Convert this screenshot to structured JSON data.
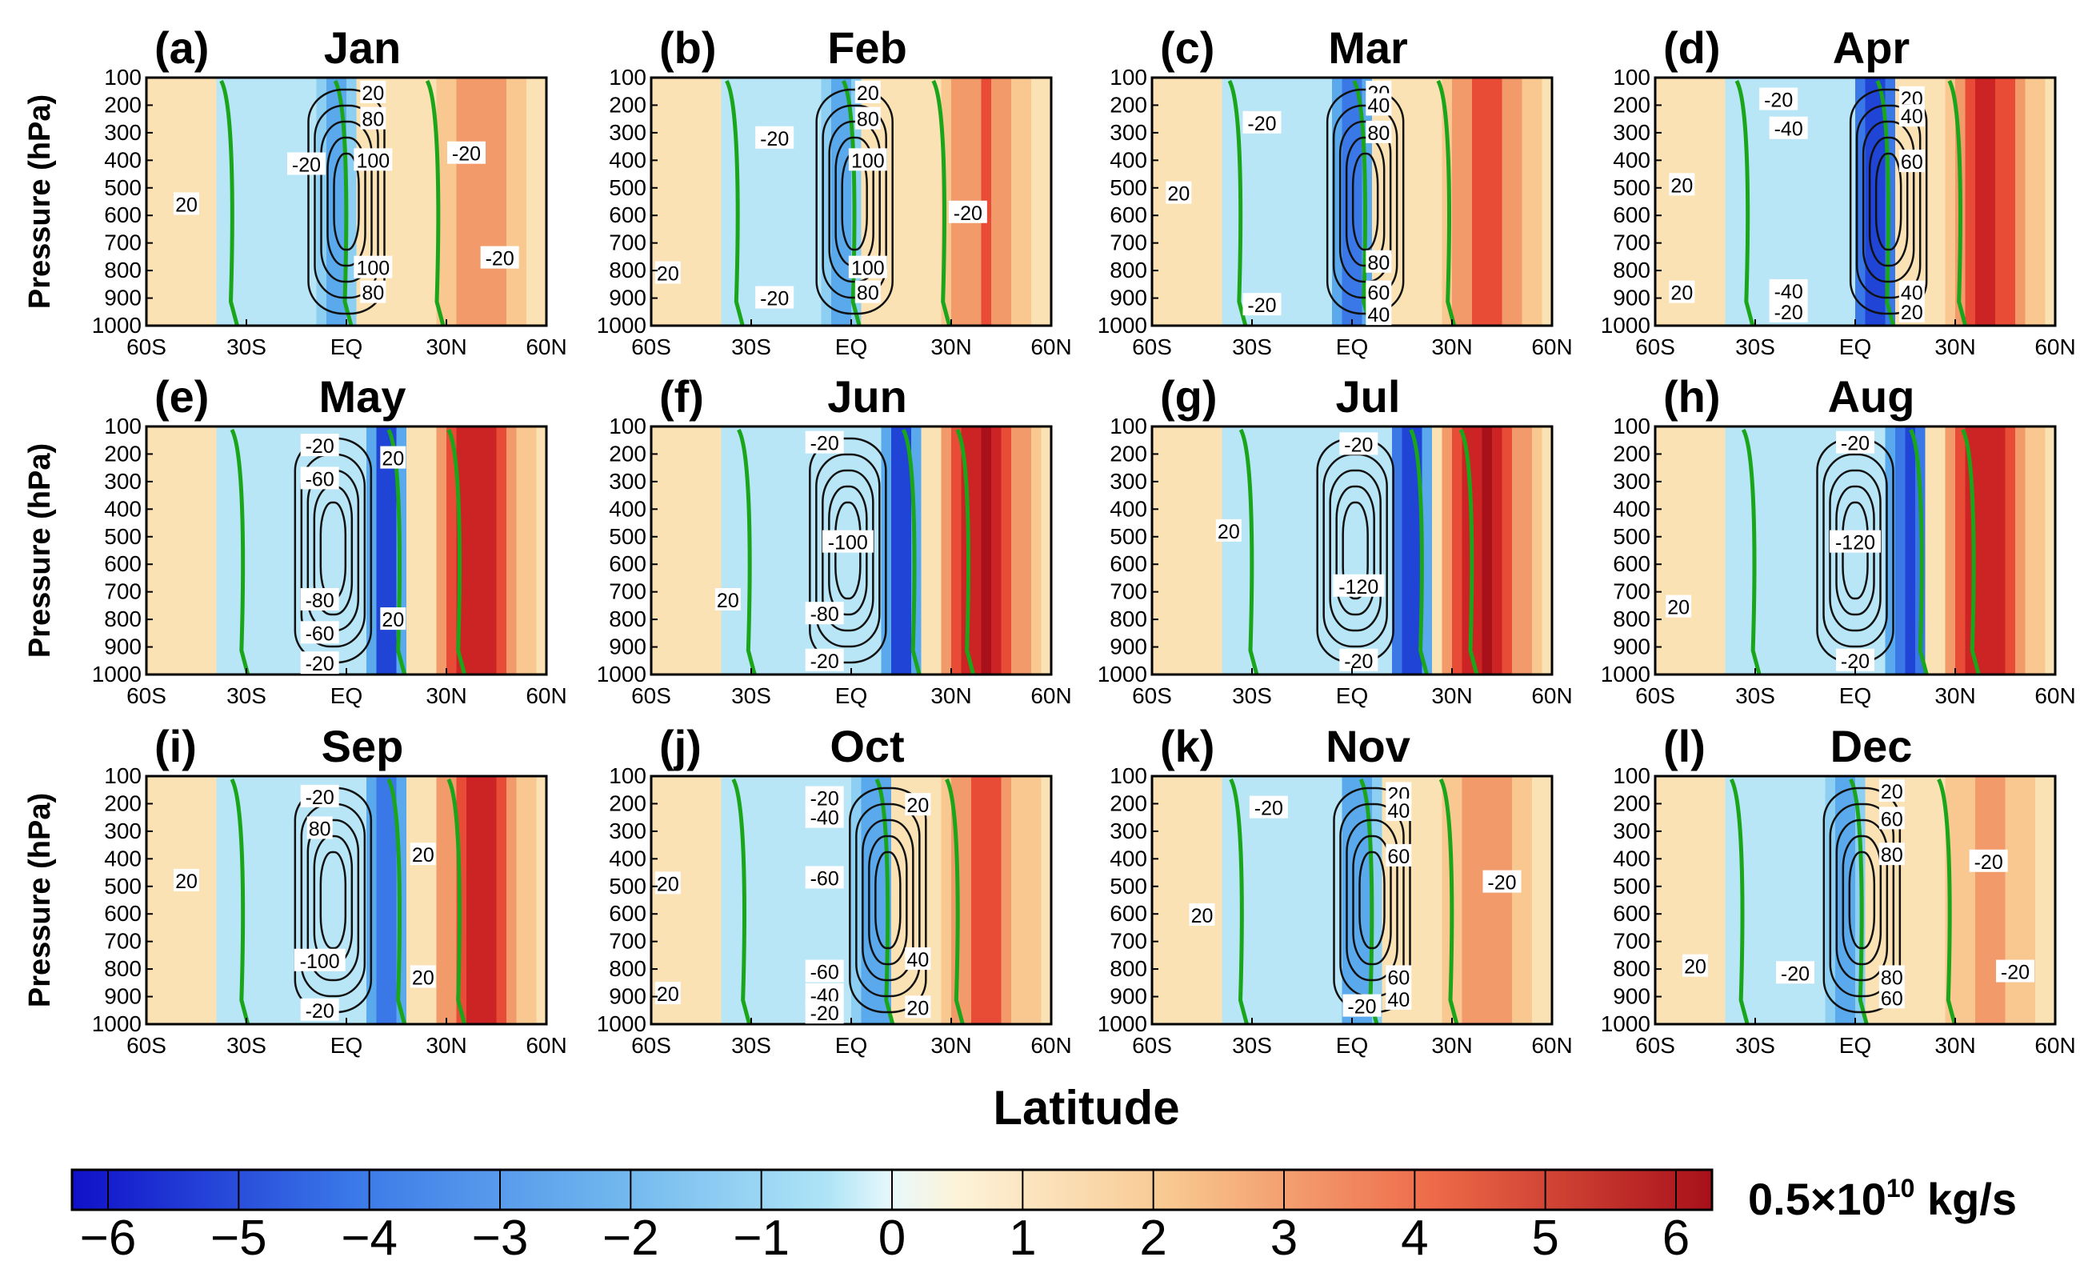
{
  "chart_data": {
    "type": "heatmap",
    "description_note": "",
    "xlabel": "Latitude",
    "ylabel": "Pressure (hPa)",
    "x_ticks": [
      "60S",
      "30S",
      "EQ",
      "30N",
      "60N"
    ],
    "x_range": [
      -60,
      60
    ],
    "y_ticks": [
      "100",
      "200",
      "300",
      "400",
      "500",
      "600",
      "700",
      "800",
      "900",
      "1000"
    ],
    "y_range": [
      1000,
      100
    ],
    "colorbar": {
      "ticks": [
        "−6",
        "−5",
        "−4",
        "−3",
        "−2",
        "−1",
        "0",
        "1",
        "2",
        "3",
        "4",
        "5",
        "6"
      ],
      "range": [
        -6,
        6
      ],
      "unit_prefix": "0.5×10",
      "unit_exp": "10",
      "unit_suffix": " kg/s",
      "colors_negative": [
        "#1010c8",
        "#3a78e8",
        "#8ccff2",
        "#dff4fb"
      ],
      "colors_positive": [
        "#fdf3d8",
        "#f8c890",
        "#e84c36",
        "#a8101a"
      ]
    },
    "panels": [
      {
        "label": "(a)",
        "title": "Jan",
        "contour_labels": [
          {
            "text": "20",
            "lat": -48,
            "p": 560
          },
          {
            "text": "-20",
            "lat": -12,
            "p": 415
          },
          {
            "text": "20",
            "lat": 8,
            "p": 155
          },
          {
            "text": "80",
            "lat": 8,
            "p": 250
          },
          {
            "text": "100",
            "lat": 8,
            "p": 400
          },
          {
            "text": "100",
            "lat": 8,
            "p": 790
          },
          {
            "text": "80",
            "lat": 8,
            "p": 880
          },
          {
            "text": "-20",
            "lat": 36,
            "p": 375
          },
          {
            "text": "-20",
            "lat": 46,
            "p": 755
          }
        ]
      },
      {
        "label": "(b)",
        "title": "Feb",
        "contour_labels": [
          {
            "text": "20",
            "lat": -55,
            "p": 810
          },
          {
            "text": "-20",
            "lat": -23,
            "p": 320
          },
          {
            "text": "-20",
            "lat": -23,
            "p": 900
          },
          {
            "text": "20",
            "lat": 5,
            "p": 155
          },
          {
            "text": "80",
            "lat": 5,
            "p": 250
          },
          {
            "text": "100",
            "lat": 5,
            "p": 400
          },
          {
            "text": "100",
            "lat": 5,
            "p": 790
          },
          {
            "text": "80",
            "lat": 5,
            "p": 880
          },
          {
            "text": "-20",
            "lat": 35,
            "p": 590
          }
        ]
      },
      {
        "label": "(c)",
        "title": "Mar",
        "contour_labels": [
          {
            "text": "20",
            "lat": -52,
            "p": 520
          },
          {
            "text": "-20",
            "lat": -27,
            "p": 265
          },
          {
            "text": "-20",
            "lat": -27,
            "p": 925
          },
          {
            "text": "20",
            "lat": 8,
            "p": 155
          },
          {
            "text": "40",
            "lat": 8,
            "p": 200
          },
          {
            "text": "80",
            "lat": 8,
            "p": 300
          },
          {
            "text": "80",
            "lat": 8,
            "p": 770
          },
          {
            "text": "60",
            "lat": 8,
            "p": 880
          },
          {
            "text": "40",
            "lat": 8,
            "p": 960
          }
        ]
      },
      {
        "label": "(d)",
        "title": "Apr",
        "contour_labels": [
          {
            "text": "20",
            "lat": -52,
            "p": 490
          },
          {
            "text": "20",
            "lat": -52,
            "p": 880
          },
          {
            "text": "-20",
            "lat": -23,
            "p": 180
          },
          {
            "text": "-40",
            "lat": -20,
            "p": 285
          },
          {
            "text": "-40",
            "lat": -20,
            "p": 875
          },
          {
            "text": "-20",
            "lat": -20,
            "p": 950
          },
          {
            "text": "20",
            "lat": 17,
            "p": 175
          },
          {
            "text": "40",
            "lat": 17,
            "p": 240
          },
          {
            "text": "60",
            "lat": 17,
            "p": 405
          },
          {
            "text": "40",
            "lat": 17,
            "p": 880
          },
          {
            "text": "20",
            "lat": 17,
            "p": 950
          }
        ]
      },
      {
        "label": "(e)",
        "title": "May",
        "contour_labels": [
          {
            "text": "-20",
            "lat": -8,
            "p": 170
          },
          {
            "text": "-60",
            "lat": -8,
            "p": 290
          },
          {
            "text": "-80",
            "lat": -8,
            "p": 730
          },
          {
            "text": "-60",
            "lat": -8,
            "p": 850
          },
          {
            "text": "-20",
            "lat": -8,
            "p": 960
          },
          {
            "text": "20",
            "lat": 14,
            "p": 215
          },
          {
            "text": "20",
            "lat": 14,
            "p": 800
          }
        ]
      },
      {
        "label": "(f)",
        "title": "Jun",
        "contour_labels": [
          {
            "text": "20",
            "lat": -37,
            "p": 730
          },
          {
            "text": "-20",
            "lat": -8,
            "p": 160
          },
          {
            "text": "-100",
            "lat": -1,
            "p": 520
          },
          {
            "text": "-80",
            "lat": -8,
            "p": 780
          },
          {
            "text": "-20",
            "lat": -8,
            "p": 950
          }
        ]
      },
      {
        "label": "(g)",
        "title": "Jul",
        "contour_labels": [
          {
            "text": "20",
            "lat": -37,
            "p": 480
          },
          {
            "text": "-20",
            "lat": 2,
            "p": 165
          },
          {
            "text": "-120",
            "lat": 2,
            "p": 680
          },
          {
            "text": "-20",
            "lat": 2,
            "p": 950
          }
        ]
      },
      {
        "label": "(h)",
        "title": "Aug",
        "contour_labels": [
          {
            "text": "20",
            "lat": -53,
            "p": 755
          },
          {
            "text": "-20",
            "lat": 0,
            "p": 160
          },
          {
            "text": "-120",
            "lat": 0,
            "p": 520
          },
          {
            "text": "-20",
            "lat": 0,
            "p": 950
          }
        ]
      },
      {
        "label": "(i)",
        "title": "Sep",
        "contour_labels": [
          {
            "text": "20",
            "lat": -48,
            "p": 480
          },
          {
            "text": "-20",
            "lat": -8,
            "p": 175
          },
          {
            "text": "80",
            "lat": -8,
            "p": 290
          },
          {
            "text": "-100",
            "lat": -8,
            "p": 770
          },
          {
            "text": "-20",
            "lat": -8,
            "p": 950
          },
          {
            "text": "20",
            "lat": 23,
            "p": 385
          },
          {
            "text": "20",
            "lat": 23,
            "p": 830
          }
        ]
      },
      {
        "label": "(j)",
        "title": "Oct",
        "contour_labels": [
          {
            "text": "20",
            "lat": -55,
            "p": 490
          },
          {
            "text": "20",
            "lat": -55,
            "p": 890
          },
          {
            "text": "-20",
            "lat": -8,
            "p": 180
          },
          {
            "text": "-40",
            "lat": -8,
            "p": 250
          },
          {
            "text": "-60",
            "lat": -8,
            "p": 470
          },
          {
            "text": "-60",
            "lat": -8,
            "p": 810
          },
          {
            "text": "-40",
            "lat": -8,
            "p": 895
          },
          {
            "text": "-20",
            "lat": -8,
            "p": 960
          },
          {
            "text": "20",
            "lat": 20,
            "p": 205
          },
          {
            "text": "40",
            "lat": 20,
            "p": 765
          },
          {
            "text": "20",
            "lat": 20,
            "p": 940
          }
        ]
      },
      {
        "label": "(k)",
        "title": "Nov",
        "contour_labels": [
          {
            "text": "20",
            "lat": -45,
            "p": 605
          },
          {
            "text": "-20",
            "lat": -25,
            "p": 215
          },
          {
            "text": "-20",
            "lat": 3,
            "p": 935
          },
          {
            "text": "20",
            "lat": 14,
            "p": 165
          },
          {
            "text": "40",
            "lat": 14,
            "p": 225
          },
          {
            "text": "60",
            "lat": 14,
            "p": 390
          },
          {
            "text": "60",
            "lat": 14,
            "p": 830
          },
          {
            "text": "40",
            "lat": 14,
            "p": 910
          },
          {
            "text": "-20",
            "lat": 45,
            "p": 485
          }
        ]
      },
      {
        "label": "(l)",
        "title": "Dec",
        "contour_labels": [
          {
            "text": "20",
            "lat": -48,
            "p": 790
          },
          {
            "text": "-20",
            "lat": -18,
            "p": 815
          },
          {
            "text": "20",
            "lat": 11,
            "p": 155
          },
          {
            "text": "60",
            "lat": 11,
            "p": 255
          },
          {
            "text": "80",
            "lat": 11,
            "p": 385
          },
          {
            "text": "80",
            "lat": 11,
            "p": 830
          },
          {
            "text": "60",
            "lat": 11,
            "p": 905
          },
          {
            "text": "-20",
            "lat": 40,
            "p": 410
          },
          {
            "text": "-20",
            "lat": 48,
            "p": 810
          }
        ]
      }
    ]
  }
}
